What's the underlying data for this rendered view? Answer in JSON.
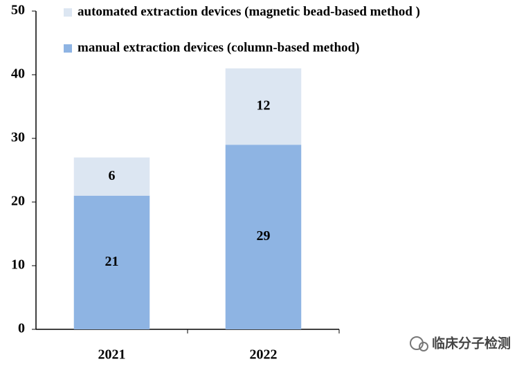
{
  "chart_data": {
    "type": "stacked_bar",
    "categories": [
      "2021",
      "2022"
    ],
    "series": [
      {
        "name": "manual extraction devices (column-based method)",
        "color": "#8eb4e3",
        "values": [
          21,
          29
        ]
      },
      {
        "name": "automated extraction devices (magnetic bead-based method )",
        "color": "#dce6f2",
        "values": [
          6,
          12
        ]
      }
    ],
    "ylim": [
      0,
      50
    ],
    "yticks": [
      0,
      10,
      20,
      30,
      40,
      50
    ],
    "grid": false
  },
  "watermark": "临床分子检测"
}
